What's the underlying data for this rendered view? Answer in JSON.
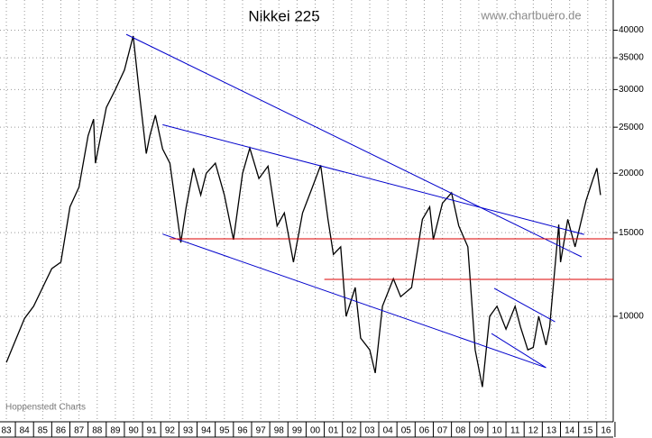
{
  "chart_data": {
    "type": "line",
    "title": "Nikkei 225",
    "subtitle": "www.chartbuero.de",
    "annotations": [
      "Hoppenstedt Charts"
    ],
    "log_scale": true,
    "grid": true,
    "xlim": [
      1982.65,
      2016.4
    ],
    "ylim": [
      6000,
      46300
    ],
    "yticks": [
      10000,
      15000,
      20000,
      25000,
      30000,
      35000,
      40000
    ],
    "xticks": [
      {
        "value": 1983,
        "label": "83"
      },
      {
        "value": 1984,
        "label": "84"
      },
      {
        "value": 1985,
        "label": "85"
      },
      {
        "value": 1986,
        "label": "86"
      },
      {
        "value": 1987,
        "label": "87"
      },
      {
        "value": 1988,
        "label": "88"
      },
      {
        "value": 1989,
        "label": "89"
      },
      {
        "value": 1990,
        "label": "90"
      },
      {
        "value": 1991,
        "label": "91"
      },
      {
        "value": 1992,
        "label": "92"
      },
      {
        "value": 1993,
        "label": "93"
      },
      {
        "value": 1994,
        "label": "94"
      },
      {
        "value": 1995,
        "label": "95"
      },
      {
        "value": 1996,
        "label": "96"
      },
      {
        "value": 1997,
        "label": "97"
      },
      {
        "value": 1998,
        "label": "98"
      },
      {
        "value": 1999,
        "label": "99"
      },
      {
        "value": 2000,
        "label": "00"
      },
      {
        "value": 2001,
        "label": "01"
      },
      {
        "value": 2002,
        "label": "02"
      },
      {
        "value": 2003,
        "label": "03"
      },
      {
        "value": 2004,
        "label": "04"
      },
      {
        "value": 2005,
        "label": "05"
      },
      {
        "value": 2006,
        "label": "06"
      },
      {
        "value": 2007,
        "label": "07"
      },
      {
        "value": 2008,
        "label": "08"
      },
      {
        "value": 2009,
        "label": "09"
      },
      {
        "value": 2010,
        "label": "10"
      },
      {
        "value": 2011,
        "label": "11"
      },
      {
        "value": 2012,
        "label": "12"
      },
      {
        "value": 2013,
        "label": "13"
      },
      {
        "value": 2014,
        "label": "14"
      },
      {
        "value": 2015,
        "label": "15"
      },
      {
        "value": 2016,
        "label": "16"
      }
    ],
    "series": [
      {
        "color": "#000000",
        "x": [
          1983.0,
          1983.5,
          1984.0,
          1984.5,
          1985.0,
          1985.5,
          1986.0,
          1986.5,
          1987.0,
          1987.5,
          1987.8,
          1987.9,
          1988.2,
          1988.5,
          1989.0,
          1989.5,
          1989.98,
          1990.3,
          1990.7,
          1990.9,
          1991.2,
          1991.6,
          1992.0,
          1992.6,
          1992.9,
          1993.3,
          1993.7,
          1994.0,
          1994.5,
          1995.0,
          1995.5,
          1996.0,
          1996.4,
          1996.9,
          1997.4,
          1997.9,
          1998.3,
          1998.8,
          1999.3,
          1999.8,
          2000.3,
          2000.7,
          2001.0,
          2001.4,
          2001.7,
          2002.2,
          2002.5,
          2003.0,
          2003.3,
          2003.7,
          2004.3,
          2004.7,
          2005.3,
          2005.9,
          2006.3,
          2006.5,
          2007.0,
          2007.5,
          2007.9,
          2008.4,
          2008.8,
          2009.2,
          2009.6,
          2010.0,
          2010.5,
          2011.0,
          2011.3,
          2011.7,
          2012.0,
          2012.3,
          2012.7,
          2012.9,
          2013.4,
          2013.5,
          2013.9,
          2014.3,
          2014.9,
          2015.3,
          2015.5,
          2015.7
        ],
        "values": [
          8000,
          8900,
          9900,
          10500,
          11500,
          12600,
          13000,
          17000,
          18700,
          24000,
          26000,
          21000,
          24000,
          27500,
          30000,
          33000,
          38900,
          30000,
          22000,
          24000,
          26500,
          22500,
          21000,
          14300,
          17000,
          20500,
          18000,
          20000,
          21000,
          18000,
          14500,
          20000,
          22600,
          19500,
          20700,
          15500,
          16500,
          13000,
          16500,
          18500,
          20800,
          16000,
          13500,
          14000,
          10000,
          11500,
          9000,
          8500,
          7600,
          10500,
          12000,
          11000,
          11500,
          16000,
          17000,
          14500,
          17300,
          18200,
          15500,
          14000,
          8500,
          7100,
          10000,
          10500,
          9400,
          10500,
          9500,
          8500,
          8600,
          10000,
          8700,
          9500,
          15600,
          13000,
          16000,
          14000,
          17500,
          19500,
          20500,
          18000
        ]
      }
    ],
    "lines": [
      {
        "color": "#0000cc",
        "x": [
          1989.6,
          2014.66
        ],
        "y": [
          39200,
          13340
        ]
      },
      {
        "color": "#0000cc",
        "x": [
          1991.6,
          2014.8
        ],
        "y": [
          25300,
          14870
        ]
      },
      {
        "color": "#0000cc",
        "x": [
          1991.6,
          2012.7
        ],
        "y": [
          14900,
          7800
        ]
      },
      {
        "color": "#0000cc",
        "x": [
          2009.85,
          2013.2
        ],
        "y": [
          11450,
          9740
        ]
      },
      {
        "color": "#0000cc",
        "x": [
          2009.7,
          2012.7
        ],
        "y": [
          9200,
          7800
        ]
      },
      {
        "color": "#dd0000",
        "x": [
          1992.0,
          2016.4
        ],
        "y": [
          14560,
          14560
        ]
      },
      {
        "color": "#dd0000",
        "x": [
          2000.5,
          2016.4
        ],
        "y": [
          11960,
          11960
        ]
      }
    ]
  }
}
